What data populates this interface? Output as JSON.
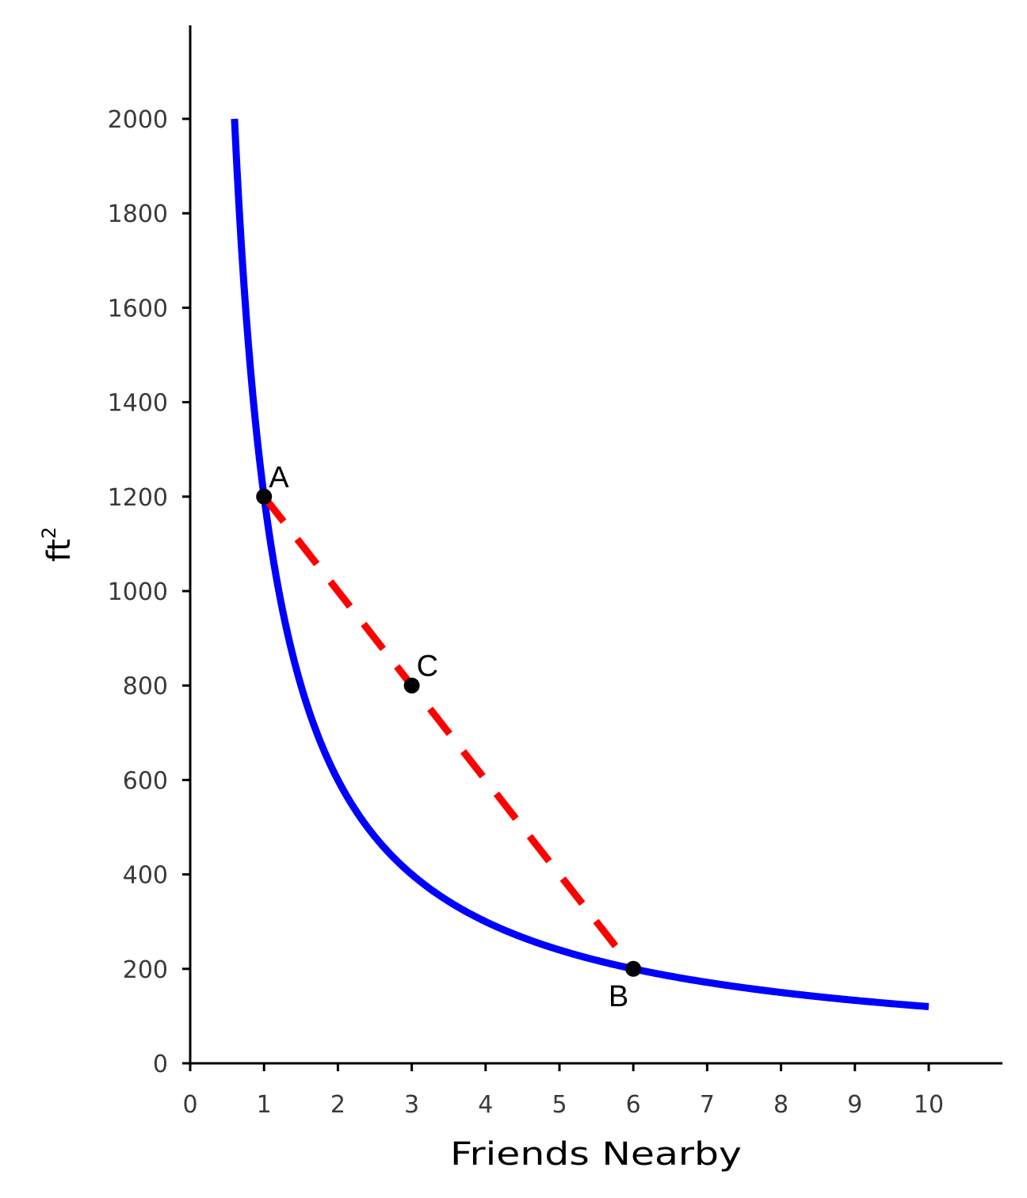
{
  "chart_data": {
    "type": "line",
    "xlabel": "Friends Nearby",
    "ylabel": "ft",
    "ylabel_superscript": "2",
    "xlim": [
      0,
      11
    ],
    "ylim": [
      0,
      2200
    ],
    "x_ticks": [
      0,
      1,
      2,
      3,
      4,
      5,
      6,
      7,
      8,
      9,
      10
    ],
    "x_tick_labels": [
      "0",
      "1",
      "2",
      "3",
      "4",
      "5",
      "6",
      "7",
      "8",
      "9",
      "10"
    ],
    "y_ticks": [
      0,
      200,
      400,
      600,
      800,
      1000,
      1200,
      1400,
      1600,
      1800,
      2000
    ],
    "y_tick_labels": [
      "0",
      "200",
      "400",
      "600",
      "800",
      "1000",
      "1200",
      "1400",
      "1600",
      "1800",
      "2000"
    ],
    "grid": false,
    "series": [
      {
        "function": "y = 1200 / x",
        "x_range": [
          0.6,
          10
        ],
        "color": "#0000ff",
        "style": "solid"
      },
      {
        "x": [
          1,
          6
        ],
        "y": [
          1200,
          200
        ],
        "color": "#ff0000",
        "style": "dashed"
      }
    ],
    "points": [
      {
        "label": "A",
        "x": 1,
        "y": 1200,
        "label_position": "upper-right"
      },
      {
        "label": "C",
        "x": 3,
        "y": 800,
        "label_position": "upper-right"
      },
      {
        "label": "B",
        "x": 6,
        "y": 200,
        "label_position": "lower-left"
      }
    ]
  }
}
